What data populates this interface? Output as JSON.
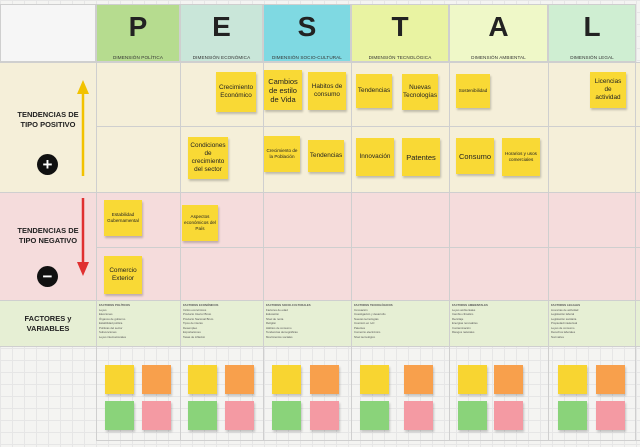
{
  "colors": {
    "P": "#b6dc8f",
    "E": "#c9e6d9",
    "S": "#7fd9e2",
    "T": "#e9f3a2",
    "A": "#eff8c8",
    "L": "#cfeed2",
    "sticky_yellow": "#f9d935",
    "pos_band": "#f5efd9",
    "neg_band": "#f5dcdc",
    "factor_band": "#e6efd4",
    "arrow_up": "#f2c200",
    "arrow_down": "#e03030",
    "palette_yellow": "#f8d531",
    "palette_orange": "#f8a04c",
    "palette_green": "#8ad37a",
    "palette_pink": "#f49aa3"
  },
  "columns": [
    {
      "letter": "P",
      "label": "DIMENSIÓN POLÍTICA"
    },
    {
      "letter": "E",
      "label": "DIMENSIÓN ECONÓMICA"
    },
    {
      "letter": "S",
      "label": "DIMENSIÓN SOCIO-CULTURAL"
    },
    {
      "letter": "T",
      "label": "DIMENSIÓN TECNOLÓGICA"
    },
    {
      "letter": "A",
      "label": "DIMENSIÓN AMBIENTAL"
    },
    {
      "letter": "L",
      "label": "DIMENSIÓN LEGAL"
    }
  ],
  "rows": {
    "positive": {
      "label": "TENDENCIAS DE TIPO POSITIVO",
      "symbol": "+"
    },
    "negative": {
      "label": "TENDENCIAS DE TIPO NEGATIVO",
      "symbol": "−"
    },
    "factors": {
      "label": "FACTORES y VARIABLES"
    }
  },
  "stickies": {
    "pos_row1": [
      "Crecimiento Económico",
      "Cambios de estilo de Vida",
      "Habitos de consumo",
      "Tendencias",
      "Nuevas Tecnologías",
      "Sostenibilidad",
      "Licencias de actividad"
    ],
    "pos_row2": [
      "Condiciones de crecimiento del sector",
      "Crecimiento de la Población",
      "Tendencias",
      "Innovación",
      "Patentes",
      "Consumo",
      "Horarios y usos comerciales"
    ],
    "neg_row1": [
      "Estabilidad Gubernamental",
      "Aspectos económicos del País"
    ],
    "neg_row2": [
      "Comercio Exterior"
    ]
  },
  "factor_headers": [
    "FACTORES POLÍTICOS",
    "FACTORES ECONÓMICOS",
    "FACTORES SOCIO-CULTURALES",
    "FACTORES TECNOLÓGICOS",
    "FACTORES AMBIENTALES",
    "FACTORES LEGALES"
  ],
  "factor_lists": [
    [
      "Leyes",
      "Elecciones",
      "Órganos de gobierno",
      "Estabilidad política",
      "Políticas del sector",
      "Subvenciones",
      "Leyes internacionales"
    ],
    [
      "Ciclos económicos",
      "Producto Interior Bruto",
      "Producto Nacional Bruto",
      "Tipos de interés",
      "Desempleo",
      "Exportaciones",
      "Tasas de inflación"
    ],
    [
      "Factores de edad",
      "Educación",
      "Nivel de renta",
      "Religión",
      "Hábitos de consumo",
      "Tendencias demográficas",
      "Movimientos sociales"
    ],
    [
      "Innovación",
      "Investigación y desarrollo",
      "Nuevas tecnologías",
      "Inversión en I+D",
      "Patentes",
      "Comercio electrónico",
      "Nivel tecnológico"
    ],
    [
      "Leyes ambientales",
      "Cambio climático",
      "Reciclaje",
      "Energías renovables",
      "Contaminación",
      "Riesgos naturales"
    ],
    [
      "Licencias de actividad",
      "Legislación laboral",
      "Legislación sanitaria",
      "Propiedad intelectual",
      "Leyes de consumo",
      "Derechos laborales",
      "Normativa"
    ]
  ]
}
